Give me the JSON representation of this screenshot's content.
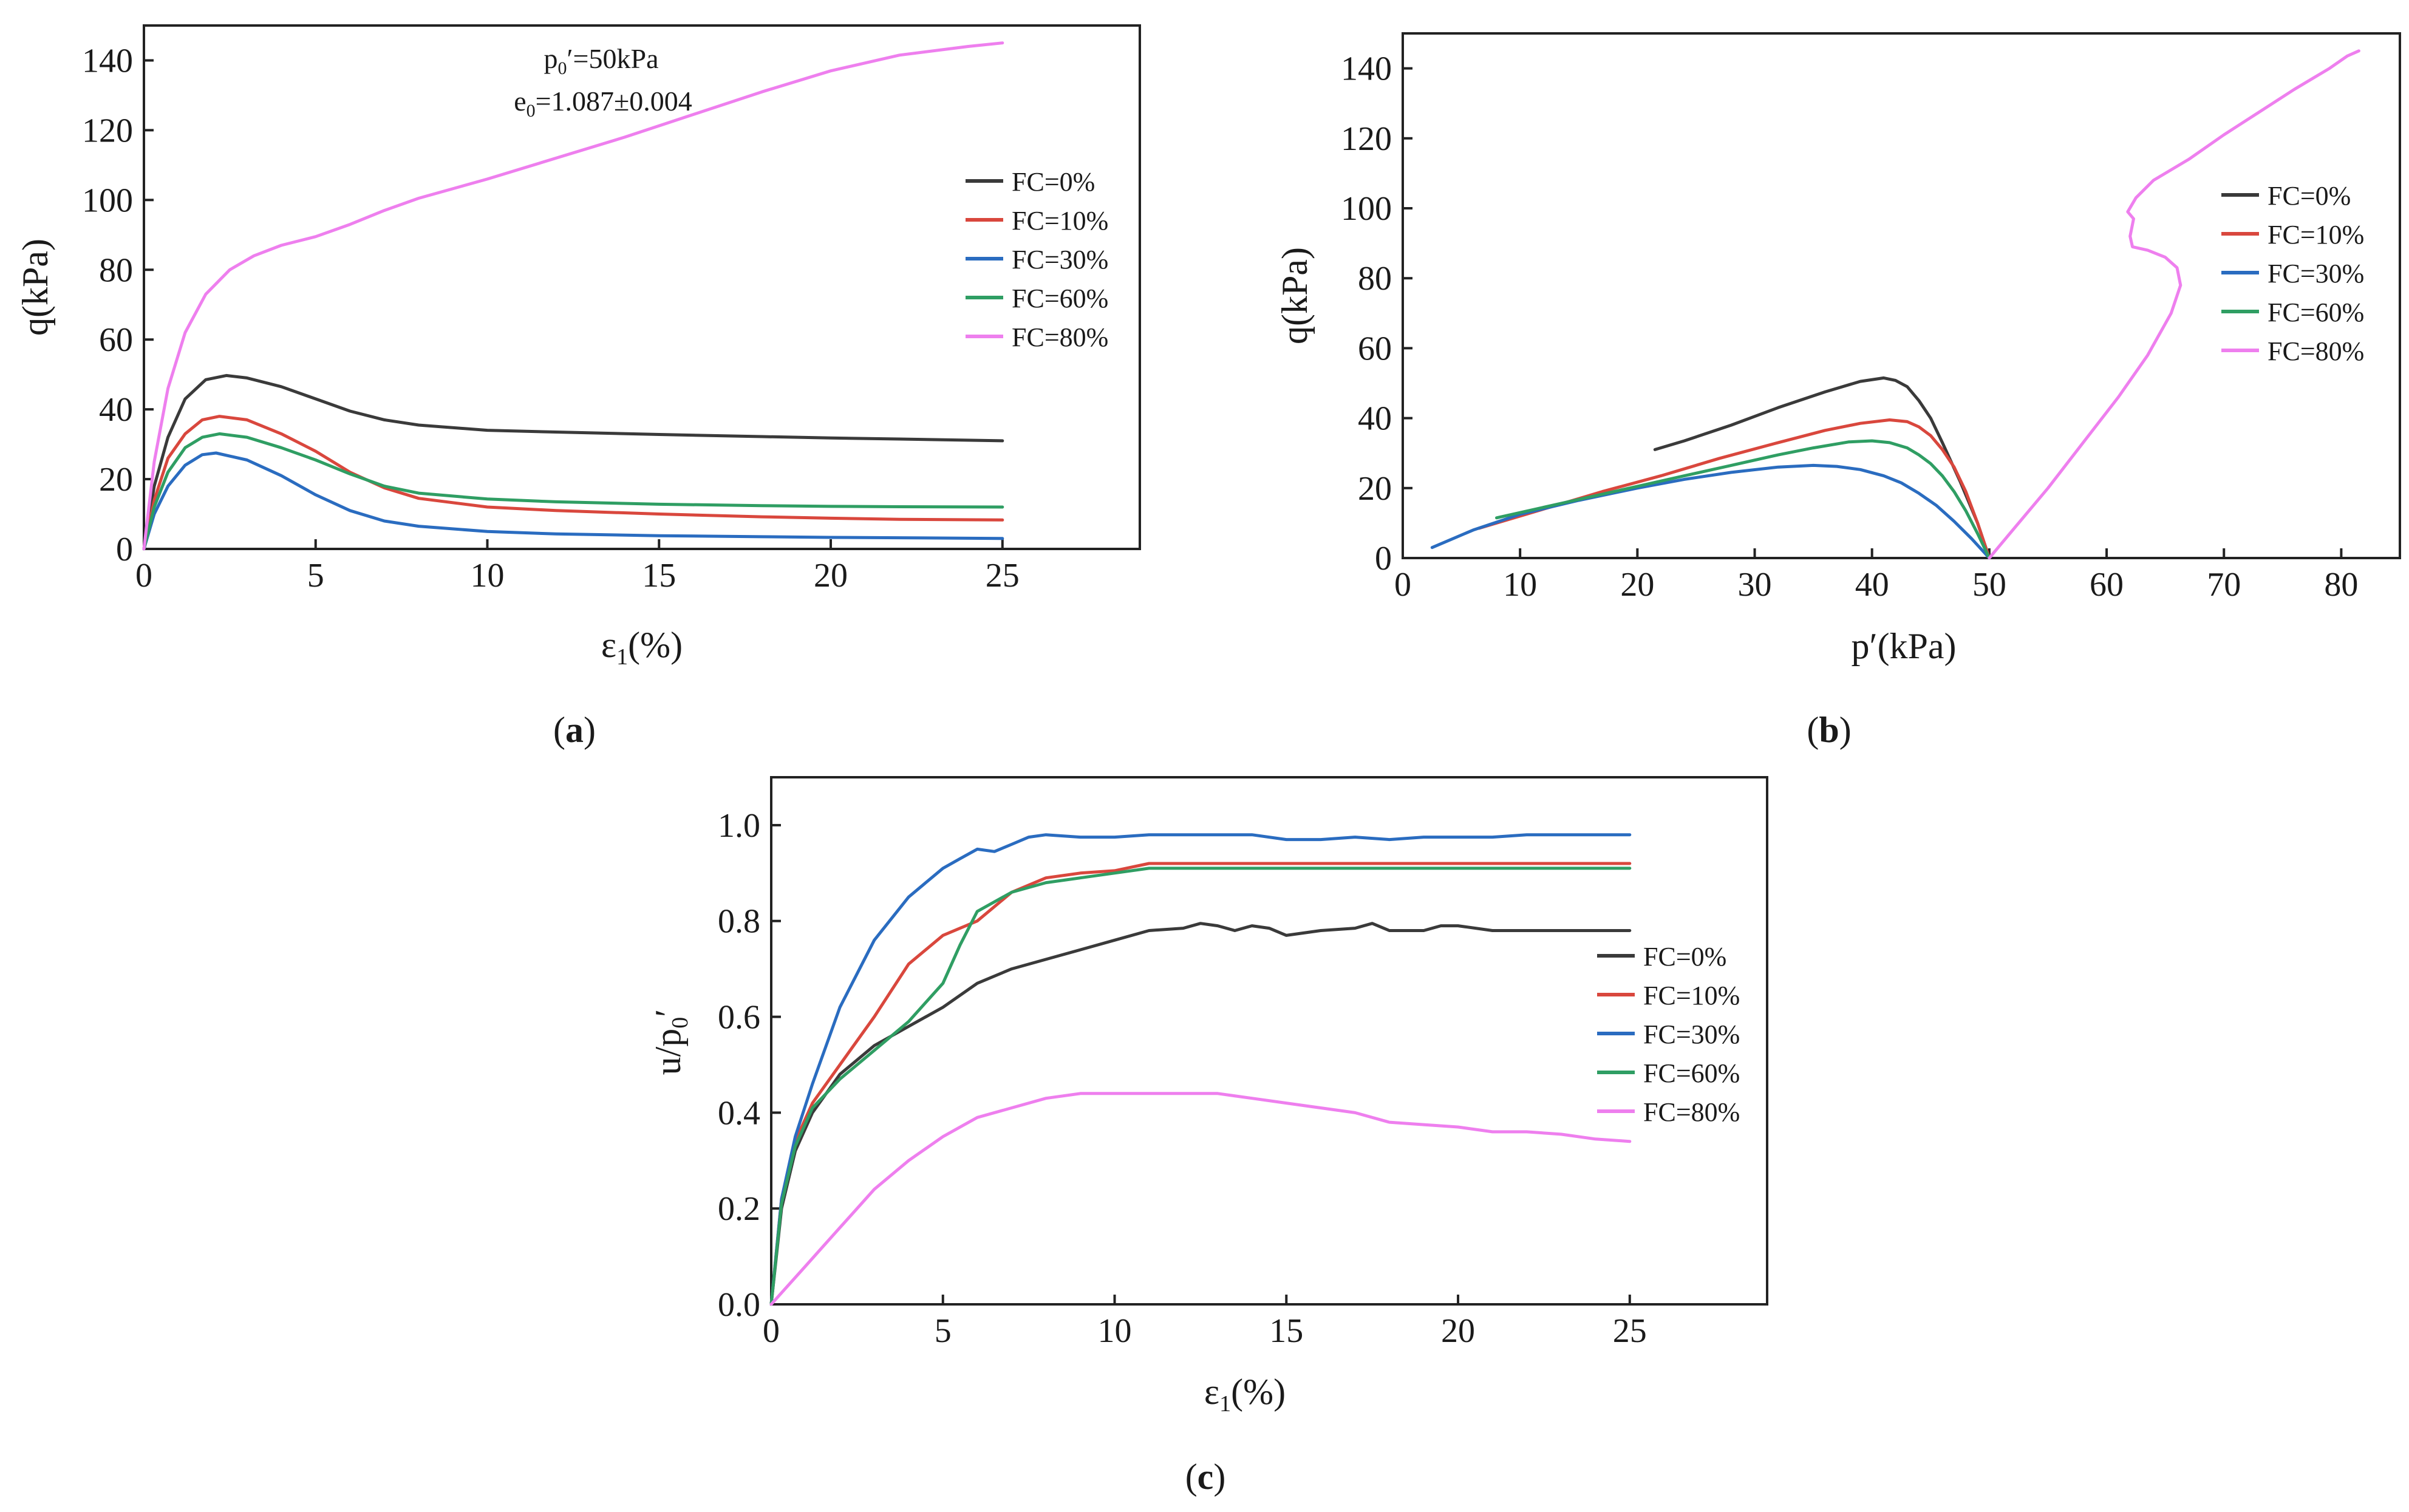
{
  "colors": {
    "FC=0%": "#3a3a3a",
    "FC=10%": "#d9473d",
    "FC=30%": "#2a6cc0",
    "FC=60%": "#2f9e63",
    "FC=80%": "#ee7fee"
  },
  "panels": {
    "a": {
      "caption_open": "(",
      "caption_letter": "a",
      "caption_close": ")"
    },
    "b": {
      "caption_open": "(",
      "caption_letter": "b",
      "caption_close": ")"
    },
    "c": {
      "caption_open": "(",
      "caption_letter": "c",
      "caption_close": ")"
    }
  },
  "chart_data": [
    {
      "id": "a",
      "type": "line",
      "title": "",
      "xlabel": "ε1(%)",
      "ylabel": "q(kPa)",
      "xlim": [
        0,
        29
      ],
      "ylim": [
        0,
        150
      ],
      "xticks": [
        0,
        5,
        10,
        15,
        20,
        25
      ],
      "yticks": [
        0,
        20,
        40,
        60,
        80,
        100,
        120,
        140
      ],
      "legend_position": "right",
      "annotations": [
        "p0′=50kPa",
        "e0=1.087±0.004"
      ],
      "series": [
        {
          "name": "FC=0%",
          "x": [
            0,
            0.3,
            0.7,
            1.2,
            1.8,
            2.4,
            3,
            4,
            5,
            6,
            7,
            8,
            10,
            12,
            15,
            18,
            20,
            22,
            25
          ],
          "y": [
            0,
            18,
            32,
            43,
            48.5,
            49.7,
            49,
            46.5,
            43,
            39.5,
            37,
            35.5,
            34,
            33.5,
            32.8,
            32.2,
            31.8,
            31.5,
            31
          ]
        },
        {
          "name": "FC=10%",
          "x": [
            0,
            0.3,
            0.7,
            1.2,
            1.7,
            2.2,
            3,
            4,
            5,
            6,
            7,
            8,
            10,
            12,
            15,
            18,
            20,
            22,
            25
          ],
          "y": [
            0,
            14,
            26,
            33,
            37,
            38,
            37,
            33,
            28,
            22,
            17.5,
            14.5,
            12,
            11,
            10,
            9.2,
            8.8,
            8.5,
            8.3
          ]
        },
        {
          "name": "FC=30%",
          "x": [
            0,
            0.3,
            0.7,
            1.2,
            1.7,
            2.1,
            3,
            4,
            5,
            6,
            7,
            8,
            10,
            12,
            15,
            18,
            20,
            22,
            25
          ],
          "y": [
            0,
            10,
            18,
            24,
            27,
            27.5,
            25.5,
            21,
            15.5,
            11,
            8,
            6.5,
            5,
            4.3,
            3.8,
            3.5,
            3.3,
            3.2,
            3
          ]
        },
        {
          "name": "FC=60%",
          "x": [
            0,
            0.3,
            0.7,
            1.2,
            1.7,
            2.2,
            3,
            4,
            5,
            6,
            7,
            8,
            10,
            12,
            15,
            18,
            20,
            22,
            25
          ],
          "y": [
            0,
            12,
            22,
            29,
            32,
            33,
            32,
            29,
            25.5,
            21.5,
            18,
            16,
            14.3,
            13.5,
            12.8,
            12.4,
            12.2,
            12.1,
            12
          ]
        },
        {
          "name": "FC=80%",
          "x": [
            0,
            0.3,
            0.7,
            1.2,
            1.8,
            2.5,
            3.2,
            4,
            5,
            6,
            7,
            8,
            10,
            12,
            14,
            16,
            18,
            20,
            22,
            24,
            25
          ],
          "y": [
            0,
            25,
            46,
            62,
            73,
            80,
            84,
            87,
            89.5,
            93,
            97,
            100.5,
            106,
            112,
            118,
            124.5,
            131,
            137,
            141.5,
            144,
            145
          ]
        }
      ]
    },
    {
      "id": "b",
      "type": "line",
      "title": "",
      "xlabel": "p′(kPa)",
      "ylabel": "q(kPa)",
      "xlim": [
        0,
        85
      ],
      "ylim": [
        0,
        150
      ],
      "xticks": [
        0,
        10,
        20,
        30,
        40,
        50,
        60,
        70,
        80
      ],
      "yticks": [
        0,
        20,
        40,
        60,
        80,
        100,
        120,
        140
      ],
      "legend_position": "right",
      "series": [
        {
          "name": "FC=0%",
          "x": [
            50,
            49,
            47.5,
            46,
            45,
            44,
            43,
            42,
            41,
            39,
            36,
            32,
            28,
            24,
            21.5
          ],
          "y": [
            0,
            10,
            22,
            33,
            40,
            45,
            49,
            50.8,
            51.5,
            50.5,
            47.5,
            43,
            38,
            33.5,
            31
          ]
        },
        {
          "name": "FC=10%",
          "x": [
            50,
            49,
            48,
            47,
            46,
            45,
            44,
            43,
            41.5,
            39,
            36,
            32,
            27,
            22,
            17,
            12,
            8,
            6.5
          ],
          "y": [
            0,
            10,
            19,
            26,
            31,
            35,
            37.5,
            39,
            39.5,
            38.5,
            36.5,
            33,
            28.5,
            23.5,
            19,
            14,
            10,
            8.5
          ]
        },
        {
          "name": "FC=30%",
          "x": [
            50,
            48.5,
            47,
            45.5,
            44,
            42.5,
            41,
            39,
            37,
            35,
            32,
            28,
            24,
            20,
            15,
            10,
            6,
            2.5
          ],
          "y": [
            0,
            5.5,
            10.5,
            15,
            18.5,
            21.5,
            23.5,
            25.3,
            26.2,
            26.5,
            26,
            24.5,
            22.5,
            20,
            16.5,
            12.5,
            8,
            3
          ]
        },
        {
          "name": "FC=60%",
          "x": [
            50,
            49,
            48,
            47,
            46,
            45,
            44,
            43,
            41.5,
            40,
            38,
            35,
            32,
            28,
            24,
            20,
            16,
            12,
            8
          ],
          "y": [
            0,
            7,
            13.5,
            19,
            23.5,
            27,
            29.5,
            31.5,
            33,
            33.5,
            33.2,
            31.5,
            29.5,
            26.5,
            23.5,
            20.5,
            17.5,
            14.5,
            11.5
          ]
        },
        {
          "name": "FC=80%",
          "x": [
            50,
            52,
            55,
            58,
            61,
            63.5,
            65.5,
            66.3,
            66,
            65,
            63.5,
            62.2,
            62,
            62.3,
            61.8,
            62.5,
            64,
            67,
            70,
            73,
            76,
            79,
            80.5,
            81.5
          ],
          "y": [
            0,
            8,
            20,
            33,
            46,
            58,
            70,
            78,
            83,
            86,
            88,
            89,
            92,
            97,
            99,
            103,
            108,
            114,
            121,
            127.5,
            134,
            140,
            143.5,
            145
          ]
        }
      ]
    },
    {
      "id": "c",
      "type": "line",
      "title": "",
      "xlabel": "ε1(%)",
      "ylabel": "u/p0′",
      "xlim": [
        0,
        29
      ],
      "ylim": [
        0,
        1.1
      ],
      "xticks": [
        0,
        5,
        10,
        15,
        20,
        25
      ],
      "yticks": [
        0.0,
        0.2,
        0.4,
        0.6,
        0.8,
        1.0
      ],
      "ytick_labels": [
        "0.0",
        "0.2",
        "0.4",
        "0.6",
        "0.8",
        "1.0"
      ],
      "legend_position": "right",
      "series": [
        {
          "name": "FC=0%",
          "x": [
            0,
            0.3,
            0.7,
            1.2,
            2,
            3,
            4,
            5,
            6,
            7,
            8,
            9,
            10,
            11,
            12,
            12.5,
            13,
            13.5,
            14,
            14.5,
            15,
            16,
            17,
            17.5,
            18,
            19,
            19.5,
            20,
            21,
            22,
            23,
            25
          ],
          "y": [
            0,
            0.2,
            0.32,
            0.4,
            0.48,
            0.54,
            0.58,
            0.62,
            0.67,
            0.7,
            0.72,
            0.74,
            0.76,
            0.78,
            0.785,
            0.795,
            0.79,
            0.78,
            0.79,
            0.785,
            0.77,
            0.78,
            0.785,
            0.795,
            0.78,
            0.78,
            0.79,
            0.79,
            0.78,
            0.78,
            0.78,
            0.78
          ]
        },
        {
          "name": "FC=10%",
          "x": [
            0,
            0.3,
            0.7,
            1.2,
            2,
            3,
            4,
            5,
            5.5,
            6,
            7,
            8,
            9,
            10,
            11,
            12,
            15,
            18,
            20,
            22,
            25
          ],
          "y": [
            0,
            0.22,
            0.34,
            0.42,
            0.5,
            0.6,
            0.71,
            0.77,
            0.785,
            0.8,
            0.86,
            0.89,
            0.9,
            0.905,
            0.92,
            0.92,
            0.92,
            0.92,
            0.92,
            0.92,
            0.92
          ]
        },
        {
          "name": "FC=30%",
          "x": [
            0,
            0.3,
            0.7,
            1.2,
            2,
            3,
            4,
            5,
            5.5,
            6,
            6.5,
            7,
            7.5,
            8,
            9,
            10,
            11,
            12,
            13,
            14,
            15,
            16,
            17,
            18,
            19,
            20,
            21,
            22,
            23,
            25
          ],
          "y": [
            0,
            0.22,
            0.35,
            0.46,
            0.62,
            0.76,
            0.85,
            0.91,
            0.93,
            0.95,
            0.945,
            0.96,
            0.975,
            0.98,
            0.975,
            0.975,
            0.98,
            0.98,
            0.98,
            0.98,
            0.97,
            0.97,
            0.975,
            0.97,
            0.975,
            0.975,
            0.975,
            0.98,
            0.98,
            0.98
          ]
        },
        {
          "name": "FC=60%",
          "x": [
            0,
            0.3,
            0.7,
            1.2,
            2,
            3,
            4,
            5,
            5.5,
            6,
            7,
            8,
            9,
            10,
            11,
            12,
            15,
            18,
            20,
            22,
            25
          ],
          "y": [
            0,
            0.21,
            0.33,
            0.41,
            0.47,
            0.53,
            0.59,
            0.67,
            0.75,
            0.82,
            0.86,
            0.88,
            0.89,
            0.9,
            0.91,
            0.91,
            0.91,
            0.91,
            0.91,
            0.91,
            0.91
          ]
        },
        {
          "name": "FC=80%",
          "x": [
            0,
            0.5,
            1,
            1.5,
            2,
            2.5,
            3,
            4,
            5,
            6,
            7,
            8,
            9,
            10,
            11,
            12,
            13,
            14,
            15,
            16,
            17,
            18,
            19,
            20,
            21,
            22,
            23,
            24,
            25
          ],
          "y": [
            0,
            0.04,
            0.08,
            0.12,
            0.16,
            0.2,
            0.24,
            0.3,
            0.35,
            0.39,
            0.41,
            0.43,
            0.44,
            0.44,
            0.44,
            0.44,
            0.44,
            0.43,
            0.42,
            0.41,
            0.4,
            0.38,
            0.375,
            0.37,
            0.36,
            0.36,
            0.355,
            0.345,
            0.34
          ]
        }
      ]
    }
  ]
}
